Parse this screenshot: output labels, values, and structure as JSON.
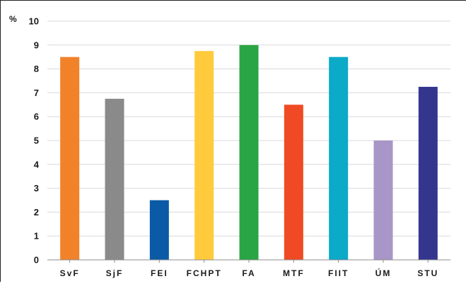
{
  "chart_data": {
    "type": "bar",
    "ylabel": "%",
    "ylim": [
      0,
      10
    ],
    "ytick_step": 1,
    "ytick_labels": [
      "0",
      "1",
      "2",
      "3",
      "4",
      "5",
      "6",
      "7",
      "8",
      "9",
      "10"
    ],
    "grid": true,
    "categories": [
      "SvF",
      "SjF",
      "FEI",
      "FCHPT",
      "FA",
      "MTF",
      "FIIT",
      "ÚM",
      "STU"
    ],
    "values": [
      8.5,
      6.75,
      2.5,
      8.75,
      9.0,
      6.5,
      8.5,
      5.0,
      7.25
    ],
    "colors": [
      "#f2822a",
      "#8a8a8a",
      "#0a5aa6",
      "#ffcb3c",
      "#2aa545",
      "#f04a24",
      "#0aaac8",
      "#a896c8",
      "#34368e"
    ]
  }
}
